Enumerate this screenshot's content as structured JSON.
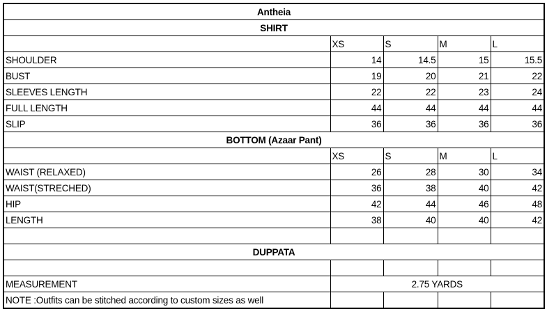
{
  "title": "Antheia",
  "shirt": {
    "heading": "SHIRT",
    "sizes": [
      "XS",
      "S",
      "M",
      "L"
    ],
    "rows": [
      {
        "label": "SHOULDER",
        "values": [
          "14",
          "14.5",
          "15",
          "15.5"
        ]
      },
      {
        "label": "BUST",
        "values": [
          "19",
          "20",
          "21",
          "22"
        ]
      },
      {
        "label": "SLEEVES LENGTH",
        "values": [
          "22",
          "22",
          "23",
          "24"
        ]
      },
      {
        "label": "FULL LENGTH",
        "values": [
          "44",
          "44",
          "44",
          "44"
        ]
      },
      {
        "label": "SLIP",
        "values": [
          "36",
          "36",
          "36",
          "36"
        ]
      }
    ]
  },
  "bottom": {
    "heading": "BOTTOM (Azaar Pant)",
    "sizes": [
      "XS",
      "S",
      "M",
      "L"
    ],
    "rows": [
      {
        "label": "WAIST (RELAXED)",
        "values": [
          "26",
          "28",
          "30",
          "34"
        ]
      },
      {
        "label": "WAIST(STRECHED)",
        "values": [
          "36",
          "38",
          "40",
          "42"
        ]
      },
      {
        "label": "HIP",
        "values": [
          "42",
          "44",
          "46",
          "48"
        ]
      },
      {
        "label": "LENGTH",
        "values": [
          "38",
          "40",
          "40",
          "42"
        ]
      }
    ]
  },
  "duppata": {
    "heading": "DUPPATA",
    "measurement_label": "MEASUREMENT",
    "measurement_value": "2.75 YARDS"
  },
  "note": "NOTE :Outfits can be stitched according to custom sizes as well"
}
